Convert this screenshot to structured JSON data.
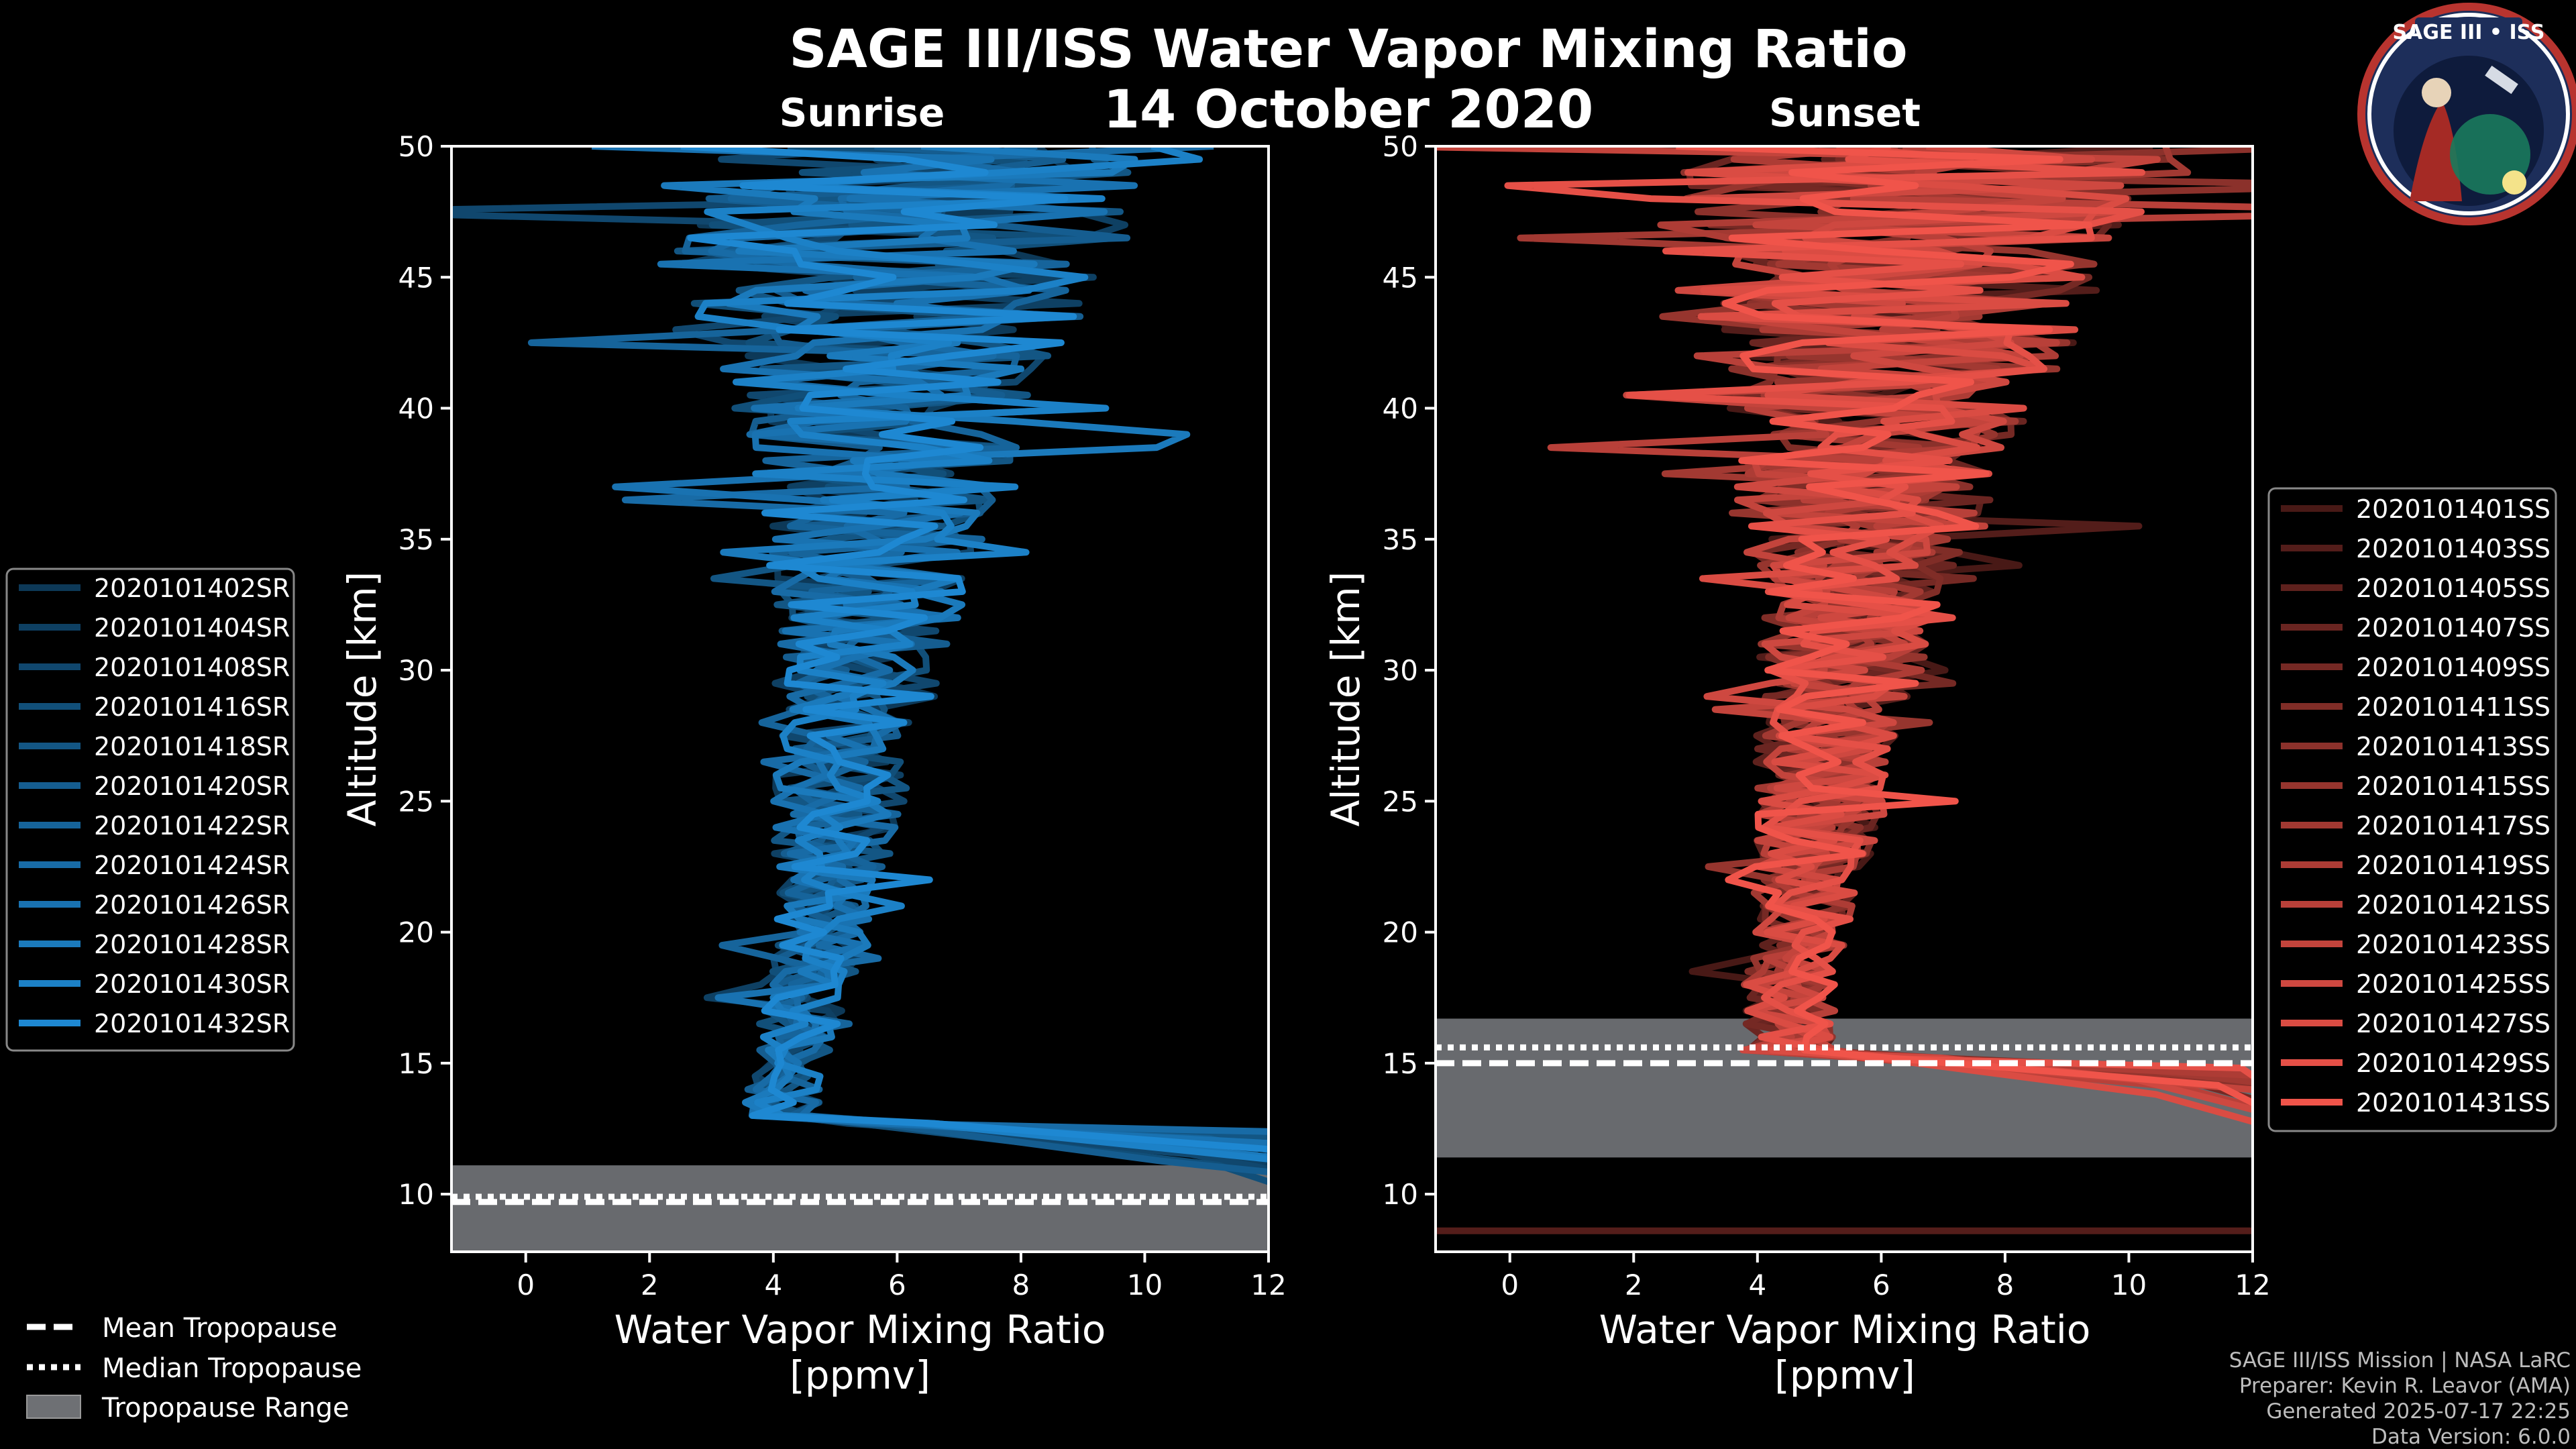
{
  "title": "SAGE III/ISS Water Vapor Mixing Ratio",
  "date": "14 October 2020",
  "badge": {
    "text": "SAGE III • ISS"
  },
  "credits": [
    "SAGE III/ISS Mission | NASA LaRC",
    "Preparer: Kevin R. Leavor (AMA)",
    "Generated 2025-07-17 22:25",
    "Data Version: 6.0.0"
  ],
  "colors": {
    "background": "#000000",
    "sunrise": "#1e88d2",
    "sunset": "#f0544a",
    "tropopause_band": "#6e7074"
  },
  "chart_data": [
    {
      "type": "line",
      "panel": "Sunrise",
      "title": "Sunrise",
      "xlabel_line1": "Water Vapor Mixing Ratio",
      "xlabel_line2": "[ppmv]",
      "ylabel": "Altitude [km]",
      "xlim": [
        -1.2,
        12
      ],
      "ylim": [
        7.8,
        50
      ],
      "xticks": [
        0,
        2,
        4,
        6,
        8,
        10,
        12
      ],
      "yticks": [
        10,
        15,
        20,
        25,
        30,
        35,
        40,
        45,
        50
      ],
      "legend_position": "left",
      "series": [
        "2020101402SR",
        "2020101404SR",
        "2020101408SR",
        "2020101416SR",
        "2020101418SR",
        "2020101420SR",
        "2020101422SR",
        "2020101424SR",
        "2020101426SR",
        "2020101428SR",
        "2020101430SR",
        "2020101432SR"
      ],
      "tropopause": {
        "mean": 9.7,
        "median": 9.9,
        "range": [
          7.8,
          11.1
        ]
      },
      "profile_median": [
        [
          9,
          4.6
        ],
        [
          10,
          4.4
        ],
        [
          11,
          4.2
        ],
        [
          12,
          4.1
        ],
        [
          13,
          4.1
        ],
        [
          14,
          4.2
        ],
        [
          15,
          4.3
        ],
        [
          16,
          4.4
        ],
        [
          17,
          4.5
        ],
        [
          18,
          4.6
        ],
        [
          19,
          4.7
        ],
        [
          20,
          4.8
        ],
        [
          22,
          4.9
        ],
        [
          24,
          5.0
        ],
        [
          26,
          5.1
        ],
        [
          28,
          5.2
        ],
        [
          30,
          5.4
        ],
        [
          32,
          5.5
        ],
        [
          34,
          5.6
        ],
        [
          36,
          5.7
        ],
        [
          38,
          5.7
        ],
        [
          40,
          5.8
        ],
        [
          42,
          5.9
        ],
        [
          44,
          6.0
        ],
        [
          46,
          6.2
        ],
        [
          48,
          6.3
        ],
        [
          50,
          6.4
        ]
      ],
      "profile_spread": [
        [
          9,
          0.4
        ],
        [
          14,
          0.5
        ],
        [
          20,
          0.6
        ],
        [
          26,
          0.9
        ],
        [
          30,
          1.1
        ],
        [
          34,
          1.3
        ],
        [
          38,
          1.7
        ],
        [
          42,
          2.3
        ],
        [
          46,
          3.0
        ],
        [
          50,
          3.5
        ]
      ],
      "boundary_layer_bottom_km": 13
    },
    {
      "type": "line",
      "panel": "Sunset",
      "title": "Sunset",
      "xlabel_line1": "Water Vapor Mixing Ratio",
      "xlabel_line2": "[ppmv]",
      "ylabel": "Altitude [km]",
      "xlim": [
        -1.2,
        12
      ],
      "ylim": [
        7.8,
        50
      ],
      "xticks": [
        0,
        2,
        4,
        6,
        8,
        10,
        12
      ],
      "yticks": [
        10,
        15,
        20,
        25,
        30,
        35,
        40,
        45,
        50
      ],
      "legend_position": "right",
      "series": [
        "2020101401SS",
        "2020101403SS",
        "2020101405SS",
        "2020101407SS",
        "2020101409SS",
        "2020101411SS",
        "2020101413SS",
        "2020101415SS",
        "2020101417SS",
        "2020101419SS",
        "2020101421SS",
        "2020101423SS",
        "2020101425SS",
        "2020101427SS",
        "2020101429SS",
        "2020101431SS"
      ],
      "tropopause": {
        "mean": 15.0,
        "median": 15.6,
        "range": [
          11.4,
          16.7
        ]
      },
      "profile_median": [
        [
          11,
          5.5
        ],
        [
          13,
          5.0
        ],
        [
          15,
          4.6
        ],
        [
          16,
          4.5
        ],
        [
          17,
          4.5
        ],
        [
          18,
          4.5
        ],
        [
          19,
          4.6
        ],
        [
          20,
          4.7
        ],
        [
          22,
          4.8
        ],
        [
          24,
          5.0
        ],
        [
          26,
          5.1
        ],
        [
          28,
          5.2
        ],
        [
          30,
          5.4
        ],
        [
          32,
          5.5
        ],
        [
          34,
          5.6
        ],
        [
          36,
          5.7
        ],
        [
          38,
          5.8
        ],
        [
          40,
          5.9
        ],
        [
          42,
          6.0
        ],
        [
          44,
          6.1
        ],
        [
          46,
          6.2
        ],
        [
          48,
          6.3
        ],
        [
          50,
          6.4
        ]
      ],
      "profile_spread": [
        [
          11,
          1.0
        ],
        [
          16,
          0.6
        ],
        [
          20,
          0.6
        ],
        [
          26,
          0.9
        ],
        [
          30,
          1.1
        ],
        [
          34,
          1.4
        ],
        [
          38,
          1.8
        ],
        [
          42,
          2.4
        ],
        [
          46,
          3.0
        ],
        [
          50,
          3.5
        ]
      ],
      "boundary_layer_bottom_km": 15.5,
      "low_trace_km": 8.6
    }
  ],
  "shared_legend": {
    "mean": "Mean Tropopause",
    "median": "Median Tropopause",
    "range": "Tropopause Range"
  }
}
